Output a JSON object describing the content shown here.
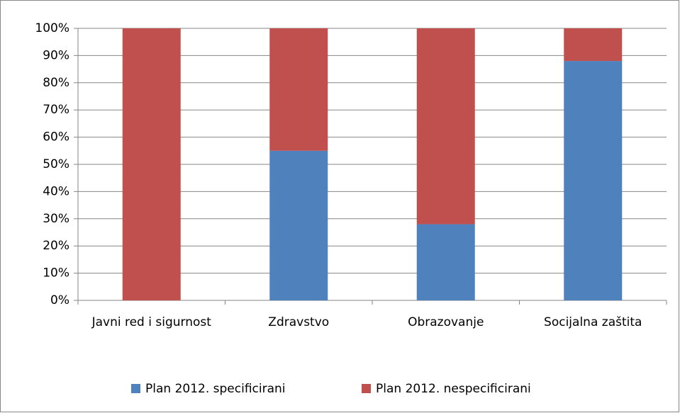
{
  "chart_data": {
    "type": "stacked_bar",
    "categories": [
      "Javni red i sigurnost",
      "Zdravstvo",
      "Obrazovanje",
      "Socijalna zaštita"
    ],
    "series": [
      {
        "name": "Plan 2012. specificirani",
        "color": "#4f81bd",
        "values": [
          0,
          55,
          28,
          88
        ]
      },
      {
        "name": "Plan 2012. nespecificirani",
        "color": "#c0504d",
        "values": [
          100,
          45,
          72,
          12
        ]
      }
    ],
    "ylim": [
      0,
      100
    ],
    "yticks": [
      {
        "value": 0,
        "label": "0%"
      },
      {
        "value": 10,
        "label": "10%"
      },
      {
        "value": 20,
        "label": "20%"
      },
      {
        "value": 30,
        "label": "30%"
      },
      {
        "value": 40,
        "label": "40%"
      },
      {
        "value": 50,
        "label": "50%"
      },
      {
        "value": 60,
        "label": "60%"
      },
      {
        "value": 70,
        "label": "70%"
      },
      {
        "value": 80,
        "label": "80%"
      },
      {
        "value": 90,
        "label": "90%"
      },
      {
        "value": 100,
        "label": "100%"
      }
    ],
    "grid": true,
    "legend": "bottom"
  }
}
